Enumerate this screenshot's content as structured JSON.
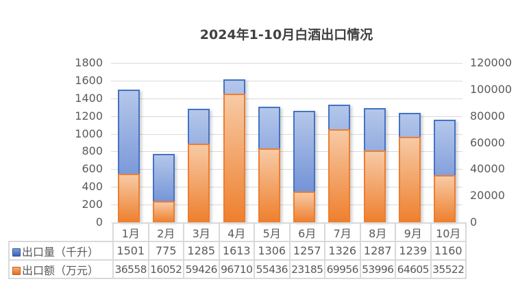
{
  "chart_data": {
    "type": "bar",
    "title": "2024年1-10月白酒出口情况",
    "categories": [
      "1月",
      "2月",
      "3月",
      "4月",
      "5月",
      "6月",
      "7月",
      "8月",
      "9月",
      "10月"
    ],
    "series": [
      {
        "name": "出口量（千升）",
        "axis": "left",
        "color": "#4472c4",
        "values": [
          1501,
          775,
          1285,
          1613,
          1306,
          1257,
          1326,
          1287,
          1239,
          1160
        ]
      },
      {
        "name": "出口额（万元）",
        "axis": "right",
        "color": "#ed7d31",
        "values": [
          36558,
          16052,
          59426,
          96710,
          55436,
          23185,
          69956,
          53996,
          64605,
          35522
        ]
      }
    ],
    "ylim_left": [
      0,
      1800
    ],
    "ylim_right": [
      0,
      120000
    ],
    "yticks_left": [
      "0",
      "200",
      "400",
      "600",
      "800",
      "1000",
      "1200",
      "1400",
      "1600",
      "1800"
    ],
    "yticks_right": [
      "0",
      "20000",
      "40000",
      "60000",
      "80000",
      "100000",
      "120000"
    ],
    "grid": true,
    "legend_position": "data-table",
    "xlabel": "",
    "ylabel": ""
  },
  "table": {
    "row_labels": [
      "出口量（千升）",
      "出口额（万元）"
    ],
    "row_values": [
      [
        "1501",
        "775",
        "1285",
        "1613",
        "1306",
        "1257",
        "1326",
        "1287",
        "1239",
        "1160"
      ],
      [
        "36558",
        "16052",
        "59426",
        "96710",
        "55436",
        "23185",
        "69956",
        "53996",
        "64605",
        "35522"
      ]
    ]
  }
}
